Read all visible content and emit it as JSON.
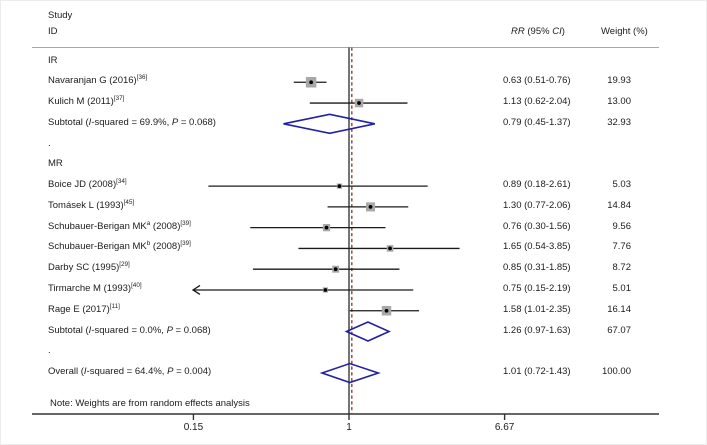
{
  "header": {
    "study_line1": "Study",
    "study_line2": "ID",
    "rr_header_parts": [
      {
        "i": "RR"
      },
      {
        "t": " (95% "
      },
      {
        "i": "CI"
      },
      {
        "t": ")"
      }
    ],
    "weight_header": "Weight (%)"
  },
  "note": "Note: Weights are from random effects analysis",
  "colors": {
    "ci_line": "#1a1a1a",
    "square_fill": "#a8a8a8",
    "point": "#000000",
    "diamond_stroke": "#2121a3",
    "null_line": "#1a1a1a",
    "overall_ref_line": "#944038",
    "axis_line": "#333333",
    "header_rule": "#a8a8a8"
  },
  "chart_data": {
    "type": "forest",
    "effect_measure": "RR",
    "scale": "log",
    "xlim": [
      0.15,
      6.67
    ],
    "null_value": 1,
    "overall_ref": 1.01,
    "axis_ticks": [
      {
        "v": 0.15,
        "label": "0.15"
      },
      {
        "v": 1,
        "label": "1"
      },
      {
        "v": 6.67,
        "label": "6.67"
      }
    ],
    "rows": [
      {
        "kind": "group",
        "parts": [
          {
            "t": "IR"
          }
        ]
      },
      {
        "kind": "study",
        "parts": [
          {
            "t": "Navaranjan G (2016)"
          },
          {
            "sup": "[36]"
          }
        ],
        "est": 0.63,
        "lo": 0.51,
        "hi": 0.76,
        "rr": "0.63 (0.51-0.76)",
        "weight": "19.93",
        "w": 19.93
      },
      {
        "kind": "study",
        "parts": [
          {
            "t": "Kulich M (2011)"
          },
          {
            "sup": "[37]"
          }
        ],
        "est": 1.13,
        "lo": 0.62,
        "hi": 2.04,
        "rr": "1.13 (0.62-2.04)",
        "weight": "13.00",
        "w": 13.0
      },
      {
        "kind": "subtotal",
        "parts": [
          {
            "t": "Subtotal ("
          },
          {
            "i": "I"
          },
          {
            "t": "-squared = 69.9%, "
          },
          {
            "i": "P"
          },
          {
            "t": " = 0.068)"
          }
        ],
        "est": 0.79,
        "lo": 0.45,
        "hi": 1.37,
        "rr": "0.79 (0.45-1.37)",
        "weight": "32.93"
      },
      {
        "kind": "spacer",
        "parts": [
          {
            "t": "."
          }
        ]
      },
      {
        "kind": "group",
        "parts": [
          {
            "t": "MR"
          }
        ]
      },
      {
        "kind": "study",
        "parts": [
          {
            "t": "Boice JD (2008)"
          },
          {
            "sup": "[34]"
          }
        ],
        "est": 0.89,
        "lo": 0.18,
        "hi": 2.61,
        "rr": "0.89 (0.18-2.61)",
        "weight": "5.03",
        "w": 5.03
      },
      {
        "kind": "study",
        "parts": [
          {
            "t": "Tomásek L (1993)"
          },
          {
            "sup": "[45]"
          }
        ],
        "est": 1.3,
        "lo": 0.77,
        "hi": 2.06,
        "rr": "1.30 (0.77-2.06)",
        "weight": "14.84",
        "w": 14.84
      },
      {
        "kind": "study",
        "parts": [
          {
            "t": "Schubauer-Berigan MK"
          },
          {
            "sup": "a"
          },
          {
            "t": " (2008)"
          },
          {
            "sup": "[39]"
          }
        ],
        "est": 0.76,
        "lo": 0.3,
        "hi": 1.56,
        "rr": "0.76 (0.30-1.56)",
        "weight": "9.56",
        "w": 9.56
      },
      {
        "kind": "study",
        "parts": [
          {
            "t": "Schubauer-Berigan MK"
          },
          {
            "sup": "b"
          },
          {
            "t": " (2008)"
          },
          {
            "sup": "[39]"
          }
        ],
        "est": 1.65,
        "lo": 0.54,
        "hi": 3.85,
        "rr": "1.65 (0.54-3.85)",
        "weight": "7.76",
        "w": 7.76
      },
      {
        "kind": "study",
        "parts": [
          {
            "t": "Darby SC (1995)"
          },
          {
            "sup": "[29]"
          }
        ],
        "est": 0.85,
        "lo": 0.31,
        "hi": 1.85,
        "rr": "0.85 (0.31-1.85)",
        "weight": "8.72",
        "w": 8.72
      },
      {
        "kind": "study",
        "parts": [
          {
            "t": "Tirmarche M (1993)"
          },
          {
            "sup": "[40]"
          }
        ],
        "est": 0.75,
        "lo": 0.15,
        "hi": 2.19,
        "rr": "0.75 (0.15-2.19)",
        "weight": "5.01",
        "w": 5.01,
        "clip_lo": true
      },
      {
        "kind": "study",
        "parts": [
          {
            "t": "Rage E (2017)"
          },
          {
            "sup": "[11]"
          }
        ],
        "est": 1.58,
        "lo": 1.01,
        "hi": 2.35,
        "rr": "1.58 (1.01-2.35)",
        "weight": "16.14",
        "w": 16.14
      },
      {
        "kind": "subtotal",
        "parts": [
          {
            "t": "Subtotal ("
          },
          {
            "i": "I"
          },
          {
            "t": "-squared = 0.0%, "
          },
          {
            "i": "P"
          },
          {
            "t": " = 0.068)"
          }
        ],
        "est": 1.26,
        "lo": 0.97,
        "hi": 1.63,
        "rr": "1.26 (0.97-1.63)",
        "weight": "67.07"
      },
      {
        "kind": "spacer",
        "parts": [
          {
            "t": "."
          }
        ]
      },
      {
        "kind": "overall",
        "parts": [
          {
            "t": "Overall ("
          },
          {
            "i": "I"
          },
          {
            "t": "-squared = 64.4%, "
          },
          {
            "i": "P"
          },
          {
            "t": " = 0.004)"
          }
        ],
        "est": 1.01,
        "lo": 0.72,
        "hi": 1.43,
        "rr": "1.01 (0.72-1.43)",
        "weight": "100.00"
      }
    ]
  }
}
